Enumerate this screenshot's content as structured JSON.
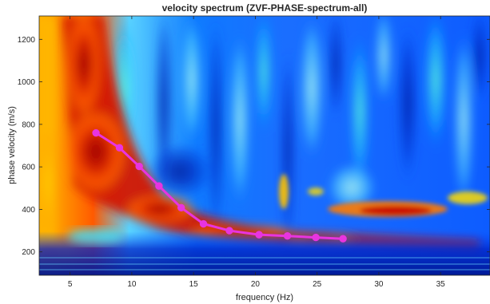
{
  "chart_data": {
    "type": "heatmap",
    "title": "velocity spectrum (ZVF-PHASE-spectrum-all)",
    "xlabel": "frequency (Hz)",
    "ylabel": "phase velocity (m/s)",
    "xlim": [
      2.5,
      39
    ],
    "ylim": [
      90,
      1310
    ],
    "xticks": [
      5,
      10,
      15,
      20,
      25,
      30,
      35
    ],
    "yticks": [
      200,
      400,
      600,
      800,
      1000,
      1200
    ],
    "colormap": "jet",
    "grid": false,
    "series": [
      {
        "type": "line",
        "color": "#e834e0",
        "x": [
          7.1,
          9.0,
          10.6,
          12.2,
          14.0,
          15.8,
          17.9,
          20.3,
          22.6,
          24.9,
          27.1
        ],
        "y": [
          760,
          690,
          602,
          510,
          408,
          332,
          300,
          281,
          275,
          268,
          262
        ]
      }
    ]
  }
}
